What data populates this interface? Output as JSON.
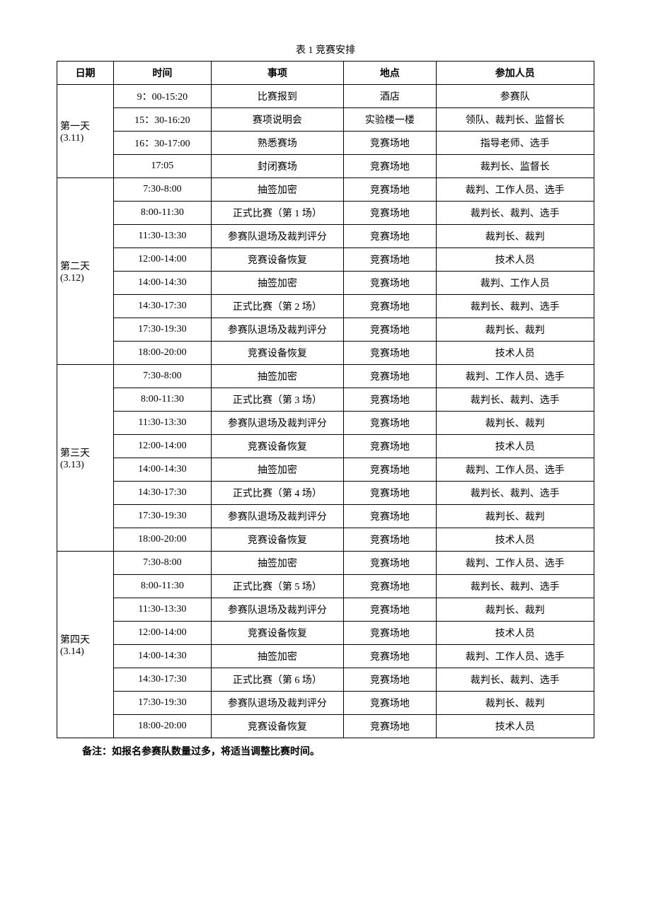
{
  "title": "表 1 竞赛安排",
  "headers": {
    "date": "日期",
    "time": "时间",
    "event": "事项",
    "location": "地点",
    "participants": "参加人员"
  },
  "days": [
    {
      "date_label": "第一天 (3.11)",
      "rows": [
        {
          "time": "9：00-15:20",
          "event": "比赛报到",
          "location": "酒店",
          "participants": "参赛队"
        },
        {
          "time": "15：30-16:20",
          "event": "赛项说明会",
          "location": "实验楼一楼",
          "participants": "领队、裁判长、监督长"
        },
        {
          "time": "16：30-17:00",
          "event": "熟悉赛场",
          "location": "竞赛场地",
          "participants": "指导老师、选手"
        },
        {
          "time": "17:05",
          "event": "封闭赛场",
          "location": "竞赛场地",
          "participants": "裁判长、监督长"
        }
      ]
    },
    {
      "date_label": "第二天 (3.12)",
      "rows": [
        {
          "time": "7:30-8:00",
          "event": "抽签加密",
          "location": "竞赛场地",
          "participants": "裁判、工作人员、选手"
        },
        {
          "time": "8:00-11:30",
          "event": "正式比赛（第 1 场）",
          "location": "竞赛场地",
          "participants": "裁判长、裁判、选手"
        },
        {
          "time": "11:30-13:30",
          "event": "参赛队退场及裁判评分",
          "location": "竞赛场地",
          "participants": "裁判长、裁判"
        },
        {
          "time": "12:00-14:00",
          "event": "竞赛设备恢复",
          "location": "竞赛场地",
          "participants": "技术人员"
        },
        {
          "time": "14:00-14:30",
          "event": "抽签加密",
          "location": "竞赛场地",
          "participants": "裁判、工作人员"
        },
        {
          "time": "14:30-17:30",
          "event": "正式比赛（第 2 场）",
          "location": "竞赛场地",
          "participants": "裁判长、裁判、选手"
        },
        {
          "time": "17:30-19:30",
          "event": "参赛队退场及裁判评分",
          "location": "竞赛场地",
          "participants": "裁判长、裁判"
        },
        {
          "time": "18:00-20:00",
          "event": "竞赛设备恢复",
          "location": "竞赛场地",
          "participants": "技术人员"
        }
      ]
    },
    {
      "date_label": "第三天 (3.13)",
      "rows": [
        {
          "time": "7:30-8:00",
          "event": "抽签加密",
          "location": "竞赛场地",
          "participants": "裁判、工作人员、选手"
        },
        {
          "time": "8:00-11:30",
          "event": "正式比赛（第 3 场）",
          "location": "竞赛场地",
          "participants": "裁判长、裁判、选手"
        },
        {
          "time": "11:30-13:30",
          "event": "参赛队退场及裁判评分",
          "location": "竞赛场地",
          "participants": "裁判长、裁判"
        },
        {
          "time": "12:00-14:00",
          "event": "竞赛设备恢复",
          "location": "竞赛场地",
          "participants": "技术人员"
        },
        {
          "time": "14:00-14:30",
          "event": "抽签加密",
          "location": "竞赛场地",
          "participants": "裁判、工作人员、选手"
        },
        {
          "time": "14:30-17:30",
          "event": "正式比赛（第 4 场）",
          "location": "竞赛场地",
          "participants": "裁判长、裁判、选手"
        },
        {
          "time": "17:30-19:30",
          "event": "参赛队退场及裁判评分",
          "location": "竞赛场地",
          "participants": "裁判长、裁判"
        },
        {
          "time": "18:00-20:00",
          "event": "竞赛设备恢复",
          "location": "竞赛场地",
          "participants": "技术人员"
        }
      ]
    },
    {
      "date_label": "第四天 (3.14)",
      "rows": [
        {
          "time": "7:30-8:00",
          "event": "抽签加密",
          "location": "竞赛场地",
          "participants": "裁判、工作人员、选手"
        },
        {
          "time": "8:00-11:30",
          "event": "正式比赛（第 5 场）",
          "location": "竞赛场地",
          "participants": "裁判长、裁判、选手"
        },
        {
          "time": "11:30-13:30",
          "event": "参赛队退场及裁判评分",
          "location": "竞赛场地",
          "participants": "裁判长、裁判"
        },
        {
          "time": "12:00-14:00",
          "event": "竞赛设备恢复",
          "location": "竞赛场地",
          "participants": "技术人员"
        },
        {
          "time": "14:00-14:30",
          "event": "抽签加密",
          "location": "竞赛场地",
          "participants": "裁判、工作人员、选手"
        },
        {
          "time": "14:30-17:30",
          "event": "正式比赛（第 6 场）",
          "location": "竞赛场地",
          "participants": "裁判长、裁判、选手"
        },
        {
          "time": "17:30-19:30",
          "event": "参赛队退场及裁判评分",
          "location": "竞赛场地",
          "participants": "裁判长、裁判"
        },
        {
          "time": "18:00-20:00",
          "event": "竞赛设备恢复",
          "location": "竞赛场地",
          "participants": "技术人员"
        }
      ]
    }
  ],
  "note": "备注：如报名参赛队数量过多，将适当调整比赛时间。",
  "styling": {
    "background_color": "#ffffff",
    "border_color": "#000000",
    "text_color": "#000000",
    "font_family": "SimSun",
    "base_font_size": 14,
    "col_widths_pct": [
      10,
      18,
      25,
      17,
      30
    ]
  }
}
